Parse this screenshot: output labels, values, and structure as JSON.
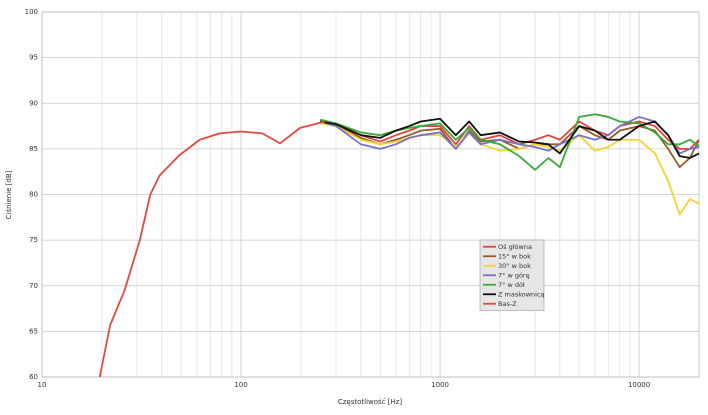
{
  "chart_data": {
    "type": "line",
    "x_label": "Częstotliwość [Hz]",
    "y_label": "Ciśnienie [dB]",
    "xlog": true,
    "grid": true,
    "legend_position": "center-right",
    "xlim": [
      10,
      20000
    ],
    "ylim": [
      60,
      100
    ],
    "xticks": [
      10,
      100,
      1000,
      10000
    ],
    "xminorticks": [
      20,
      30,
      40,
      50,
      60,
      70,
      80,
      90,
      200,
      300,
      400,
      500,
      600,
      700,
      800,
      900,
      2000,
      3000,
      4000,
      5000,
      6000,
      7000,
      8000,
      9000
    ],
    "yticks": [
      60,
      65,
      70,
      75,
      80,
      85,
      90,
      95,
      100
    ],
    "series": [
      {
        "name": "Oś główna",
        "color": "#e0443c",
        "x": [
          250,
          300,
          400,
          500,
          600,
          700,
          800,
          1000,
          1200,
          1400,
          1600,
          2000,
          2500,
          3000,
          3500,
          4000,
          5000,
          6000,
          7000,
          8000,
          10000,
          12000,
          14000,
          16000,
          18000,
          20000
        ],
        "values": [
          88,
          87.8,
          86.5,
          85.8,
          86.5,
          87,
          87.5,
          87.5,
          85.5,
          87.5,
          86,
          86.5,
          85.5,
          86,
          86.5,
          86,
          88,
          87,
          86.5,
          87.5,
          88,
          87.5,
          86,
          85,
          85,
          86
        ]
      },
      {
        "name": "15° w bok",
        "color": "#9a5a2a",
        "x": [
          250,
          300,
          400,
          500,
          600,
          700,
          800,
          1000,
          1200,
          1400,
          1600,
          2000,
          2500,
          3000,
          3500,
          4000,
          5000,
          6000,
          7000,
          8000,
          10000,
          12000,
          14000,
          16000,
          18000,
          20000
        ],
        "values": [
          88,
          87.7,
          86.2,
          85.5,
          86,
          86.5,
          87,
          87.2,
          85,
          87,
          85.8,
          86,
          85,
          85.5,
          85.5,
          85.5,
          87.5,
          86.5,
          86,
          87,
          87.5,
          87,
          85,
          83,
          84,
          86
        ]
      },
      {
        "name": "30° w bok",
        "color": "#f2d530",
        "x": [
          250,
          300,
          400,
          500,
          600,
          700,
          800,
          1000,
          1200,
          1400,
          1600,
          2000,
          2500,
          3000,
          3500,
          4000,
          5000,
          6000,
          7000,
          8000,
          10000,
          12000,
          14000,
          16000,
          18000,
          20000
        ],
        "values": [
          87.8,
          87.5,
          86,
          85.5,
          85.8,
          86.2,
          86.5,
          86.5,
          85.2,
          86.8,
          85.5,
          84.8,
          85,
          85.5,
          85.2,
          84.8,
          86.5,
          84.8,
          85.2,
          86,
          86,
          84.5,
          81.5,
          77.8,
          79.5,
          79
        ]
      },
      {
        "name": "7° w górę",
        "color": "#7474c8",
        "x": [
          250,
          300,
          400,
          500,
          600,
          700,
          800,
          1000,
          1200,
          1400,
          1600,
          2000,
          2500,
          3000,
          3500,
          4000,
          5000,
          6000,
          7000,
          8000,
          10000,
          12000,
          14000,
          16000,
          18000,
          20000
        ],
        "values": [
          88,
          87.5,
          85.5,
          85,
          85.5,
          86.2,
          86.5,
          86.8,
          85,
          86.8,
          85.5,
          86,
          85.5,
          85.2,
          84.8,
          85.5,
          86.5,
          86,
          86.5,
          87.5,
          88.5,
          88,
          86.5,
          84.5,
          85,
          85.2
        ]
      },
      {
        "name": "7° w dół",
        "color": "#3aaa3a",
        "x": [
          250,
          300,
          400,
          500,
          600,
          700,
          800,
          1000,
          1200,
          1400,
          1600,
          2000,
          2500,
          3000,
          3500,
          4000,
          5000,
          6000,
          7000,
          8000,
          10000,
          12000,
          14000,
          16000,
          18000,
          20000
        ],
        "values": [
          88.2,
          87.8,
          86.8,
          86.5,
          87,
          87.3,
          87.5,
          87.8,
          86,
          87.3,
          86,
          85.5,
          84.2,
          82.7,
          84,
          83,
          88.5,
          88.8,
          88.5,
          88,
          87.8,
          86.8,
          85.5,
          85.5,
          86,
          85.3
        ]
      },
      {
        "name": "Z maskownicą",
        "color": "#111111",
        "x": [
          250,
          300,
          400,
          500,
          600,
          700,
          800,
          1000,
          1200,
          1400,
          1600,
          2000,
          2500,
          3000,
          3500,
          4000,
          5000,
          6000,
          7000,
          8000,
          10000,
          12000,
          14000,
          16000,
          18000,
          20000
        ],
        "values": [
          88,
          87.7,
          86.5,
          86.2,
          87,
          87.5,
          88,
          88.3,
          86.5,
          88,
          86.5,
          86.8,
          85.8,
          85.7,
          85.5,
          84.5,
          87.5,
          87,
          86,
          86,
          87.5,
          88,
          86.5,
          84.2,
          84,
          84.5
        ]
      },
      {
        "name": "Bas-Z",
        "color": "#e34a40",
        "x": [
          19.5,
          22,
          26,
          31,
          35,
          39,
          49,
          62,
          78,
          100,
          128,
          157,
          198,
          264
        ],
        "values": [
          60,
          65.7,
          69.5,
          75,
          80,
          82.1,
          84.3,
          86,
          86.7,
          86.9,
          86.7,
          85.6,
          87.3,
          88
        ]
      }
    ]
  }
}
